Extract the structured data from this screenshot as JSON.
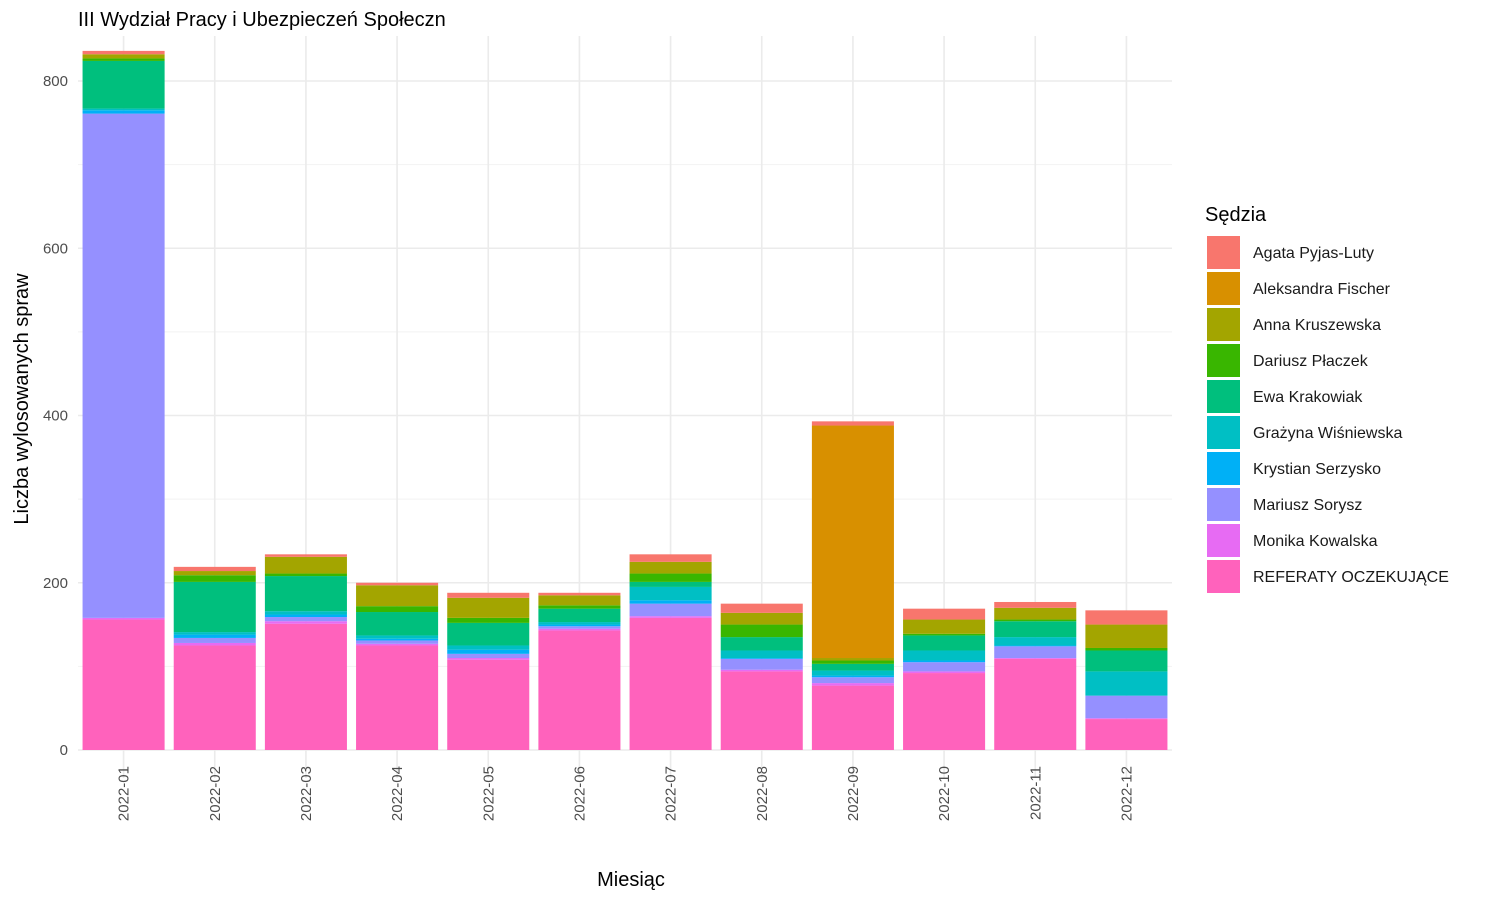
{
  "chart_data": {
    "type": "bar",
    "stacked": true,
    "title": "III Wydział Pracy i Ubezpieczeń Społeczn",
    "xlabel": "Miesiąc",
    "ylabel": "Liczba wylosowanych spraw",
    "ylim": [
      -30,
      840
    ],
    "yticks": [
      0,
      200,
      400,
      600,
      800
    ],
    "grid": true,
    "legend_position": "right",
    "legend_title": "Sędzia",
    "categories": [
      "2022-01",
      "2022-02",
      "2022-03",
      "2022-04",
      "2022-05",
      "2022-06",
      "2022-07",
      "2022-08",
      "2022-09",
      "2022-10",
      "2022-11",
      "2022-12"
    ],
    "stack_order": "REFERATY OCZEKUJĄCE at bottom, Agata Pyjas-Luty at top",
    "series": [
      {
        "name": "Agata Pyjas-Luty",
        "color": "#F8766D",
        "values": [
          4,
          5,
          3,
          3,
          6,
          3,
          9,
          11,
          5,
          13,
          7,
          17
        ]
      },
      {
        "name": "Aleksandra Fischer",
        "color": "#D89000",
        "values": [
          0,
          0,
          0,
          0,
          0,
          0,
          0,
          0,
          278,
          0,
          0,
          0
        ]
      },
      {
        "name": "Anna Kruszewska",
        "color": "#A3A500",
        "values": [
          5,
          5,
          20,
          25,
          24,
          12,
          14,
          14,
          3,
          17,
          14,
          28
        ]
      },
      {
        "name": "Dariusz Płaczek",
        "color": "#39B600",
        "values": [
          3,
          8,
          3,
          7,
          6,
          4,
          10,
          15,
          4,
          2,
          2,
          3
        ]
      },
      {
        "name": "Ewa Krakowiak",
        "color": "#00BF7D",
        "values": [
          57,
          60,
          42,
          28,
          27,
          16,
          6,
          16,
          8,
          18,
          19,
          25
        ]
      },
      {
        "name": "Grażyna Wiśniewska",
        "color": "#00BFC4",
        "values": [
          2,
          3,
          4,
          4,
          5,
          3,
          16,
          9,
          6,
          12,
          10,
          29
        ]
      },
      {
        "name": "Krystian Serzysko",
        "color": "#00B0F6",
        "values": [
          4,
          4,
          3,
          2,
          5,
          2,
          4,
          1,
          2,
          2,
          1,
          0
        ]
      },
      {
        "name": "Mariusz Sorysz",
        "color": "#9590FF",
        "values": [
          603,
          6,
          5,
          4,
          5,
          3,
          15,
          13,
          7,
          11,
          14,
          27
        ]
      },
      {
        "name": "Monika Kowalska",
        "color": "#E76BF3",
        "values": [
          2,
          3,
          3,
          2,
          2,
          2,
          2,
          2,
          3,
          2,
          1,
          1
        ]
      },
      {
        "name": "REFERATY OCZEKUJĄCE",
        "color": "#FF62BC",
        "values": [
          156,
          125,
          151,
          125,
          108,
          143,
          158,
          94,
          77,
          92,
          109,
          37
        ]
      }
    ]
  }
}
